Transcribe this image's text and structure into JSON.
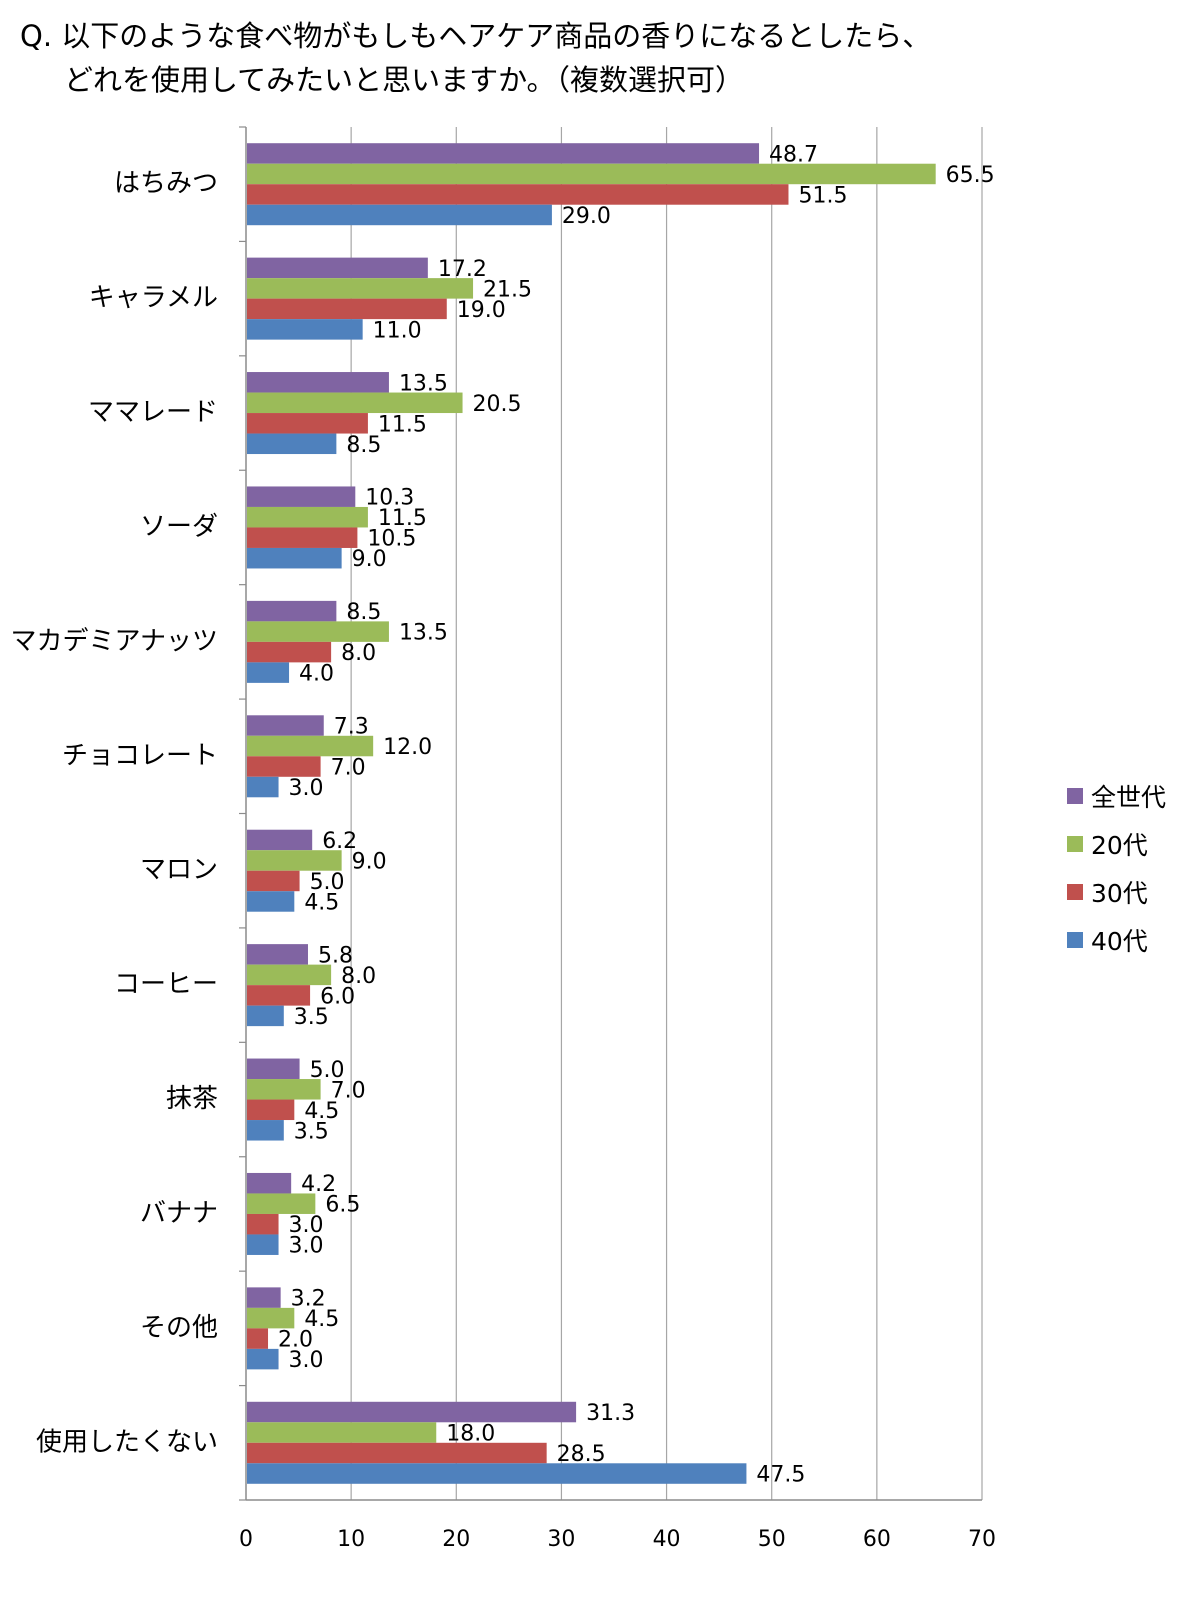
{
  "title": {
    "line1": "Q. 以下のような食べ物がもしもヘアケア商品の香りになるとしたら、",
    "line2": "どれを使用してみたいと思いますか。（複数選択可）"
  },
  "chart_data": {
    "type": "bar",
    "orientation": "horizontal",
    "categories": [
      "はちみつ",
      "キャラメル",
      "ママレード",
      "ソーダ",
      "マカデミアナッツ",
      "チョコレート",
      "マロン",
      "コーヒー",
      "抹茶",
      "バナナ",
      "その他",
      "使用したくない"
    ],
    "series": [
      {
        "name": "全世代",
        "color": "#8064a2",
        "values": [
          48.7,
          17.2,
          13.5,
          10.3,
          8.5,
          7.3,
          6.2,
          5.8,
          5.0,
          4.2,
          3.2,
          31.3
        ]
      },
      {
        "name": "20代",
        "color": "#9bbb59",
        "values": [
          65.5,
          21.5,
          20.5,
          11.5,
          13.5,
          12.0,
          9.0,
          8.0,
          7.0,
          6.5,
          4.5,
          18.0
        ]
      },
      {
        "name": "30代",
        "color": "#c0504d",
        "values": [
          51.5,
          19.0,
          11.5,
          10.5,
          8.0,
          7.0,
          5.0,
          6.0,
          4.5,
          3.0,
          2.0,
          28.5
        ]
      },
      {
        "name": "40代",
        "color": "#4f81bd",
        "values": [
          29.0,
          11.0,
          8.5,
          9.0,
          4.0,
          3.0,
          4.5,
          3.5,
          3.5,
          3.0,
          3.0,
          47.5
        ]
      }
    ],
    "xlim": [
      0,
      70
    ],
    "xticks": [
      0,
      10,
      20,
      30,
      40,
      50,
      60,
      70
    ],
    "grid": true,
    "legend_position": "right"
  }
}
